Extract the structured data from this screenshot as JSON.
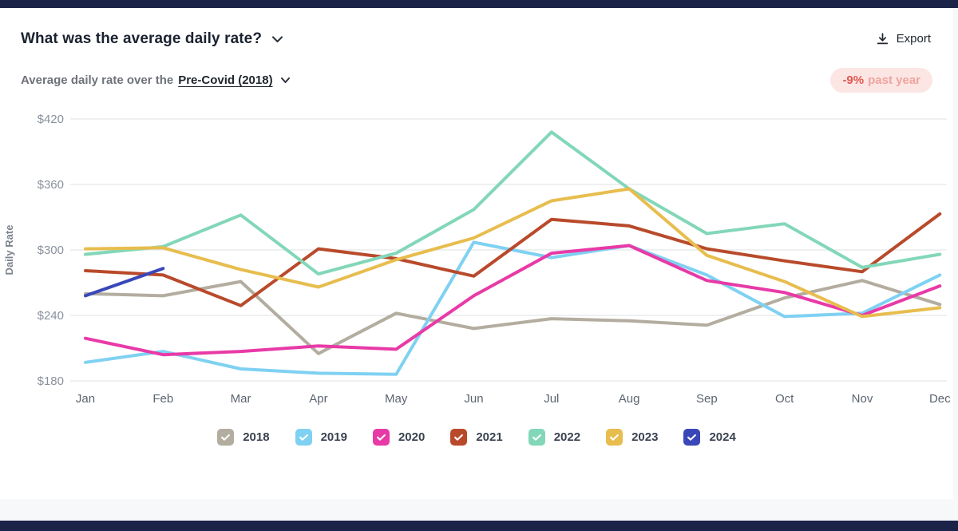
{
  "header": {
    "title": "What was the average daily rate?",
    "export_label": "Export"
  },
  "subtitle": {
    "prefix": "Average daily rate over the",
    "period_link": "Pre-Covid (2018)"
  },
  "badge": {
    "value": "-9%",
    "suffix": "past year"
  },
  "colors": {
    "badge_bg": "#fbe6e4",
    "badge_value_text": "#e2574e",
    "badge_suffix_text": "#f0a49e",
    "chrome_strip": "#1b2348",
    "grid_line": "#e4e6ea",
    "axis_text": "#8a919c"
  },
  "icons": {
    "export": "download-icon",
    "title_dropdown": "chevron-down-icon",
    "period_dropdown": "chevron-down-icon",
    "legend_check": "checkmark-icon"
  },
  "chart_data": {
    "type": "line",
    "title": "Average daily rate over the Pre-Covid (2018)",
    "xlabel": "",
    "ylabel": "Daily Rate",
    "x": [
      "Jan",
      "Feb",
      "Mar",
      "Apr",
      "May",
      "Jun",
      "Jul",
      "Aug",
      "Sep",
      "Oct",
      "Nov",
      "Dec"
    ],
    "yticks": [
      "$180",
      "$240",
      "$300",
      "$360",
      "$420"
    ],
    "ytick_values": [
      180,
      240,
      300,
      360,
      420
    ],
    "ylim": [
      180,
      420
    ],
    "grid": true,
    "legend_position": "bottom",
    "series": [
      {
        "name": "2018",
        "color": "#b3ada0",
        "values": [
          260,
          258,
          271,
          205,
          242,
          228,
          237,
          235,
          231,
          256,
          272,
          250
        ]
      },
      {
        "name": "2019",
        "color": "#7fd1f2",
        "values": [
          197,
          207,
          191,
          187,
          186,
          307,
          293,
          304,
          277,
          239,
          242,
          277
        ]
      },
      {
        "name": "2020",
        "color": "#e83aa7",
        "values": [
          219,
          204,
          207,
          212,
          209,
          258,
          297,
          304,
          272,
          261,
          240,
          267
        ]
      },
      {
        "name": "2021",
        "color": "#b84a2b",
        "values": [
          281,
          277,
          249,
          301,
          292,
          276,
          328,
          322,
          301,
          290,
          280,
          333
        ]
      },
      {
        "name": "2022",
        "color": "#82d7b8",
        "values": [
          296,
          303,
          332,
          278,
          297,
          337,
          408,
          356,
          315,
          324,
          284,
          296
        ]
      },
      {
        "name": "2023",
        "color": "#e7bd4e",
        "values": [
          301,
          302,
          282,
          266,
          291,
          311,
          345,
          356,
          295,
          271,
          239,
          247
        ]
      },
      {
        "name": "2024",
        "color": "#3a47b8",
        "values": [
          258,
          283,
          null,
          null,
          null,
          null,
          null,
          null,
          null,
          null,
          null,
          null
        ]
      }
    ]
  }
}
